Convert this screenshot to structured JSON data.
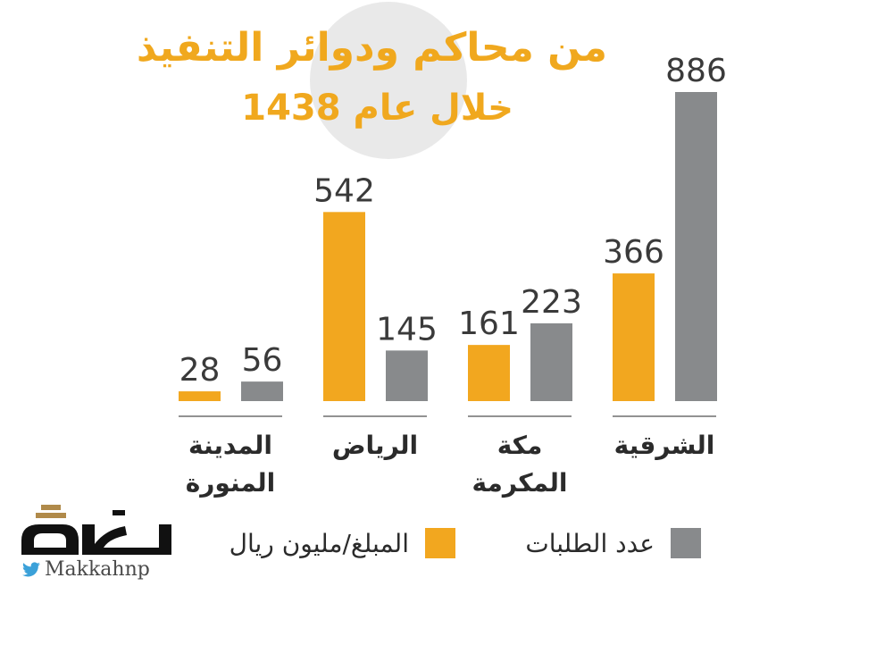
{
  "title": {
    "line1": "من محاكم ودوائر التنفيذ",
    "line2": "خلال عام 1438"
  },
  "colors": {
    "amount": "#f2a71f",
    "count": "#888a8c",
    "title": "#f0a81e",
    "circle": "#e9e9e9",
    "text": "#2b2b2b"
  },
  "chart_data": {
    "type": "bar",
    "categories": [
      [
        "المدينة",
        "المنورة"
      ],
      [
        "الرياض"
      ],
      [
        "مكة",
        "المكرمة"
      ],
      [
        "الشرقية"
      ]
    ],
    "series": [
      {
        "name": "المبلغ/مليون ريال",
        "values": [
          28,
          542,
          161,
          366
        ]
      },
      {
        "name": "عدد الطلبات",
        "values": [
          56,
          145,
          223,
          886
        ]
      }
    ],
    "ylim": [
      0,
      886
    ],
    "grid": false,
    "legend": "bottom"
  },
  "legend": {
    "amount_label": "المبلغ/مليون ريال",
    "count_label": "عدد الطلبات"
  },
  "logo": {
    "icon": "twitter-icon",
    "handle": "Makkahnp"
  }
}
